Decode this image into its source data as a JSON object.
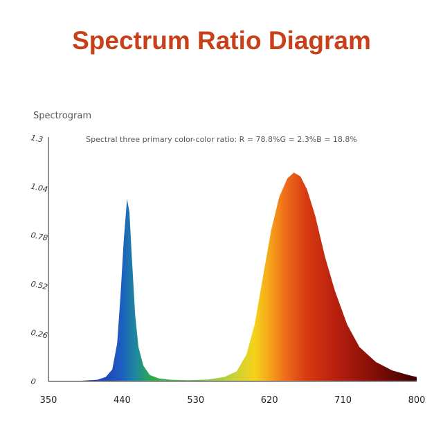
{
  "title": "Spectrum Ratio Diagram",
  "chart_data": {
    "type": "area",
    "panel_label": "Spectrogram",
    "annotation": "Spectral three primary color-color ratio: R = 78.8%G = 2.3%B = 18.8%",
    "xlim": [
      350,
      800
    ],
    "ylim": [
      0,
      1.3
    ],
    "x_ticks": [
      "350",
      "440",
      "530",
      "620",
      "710",
      "800"
    ],
    "y_ticks": [
      "0",
      "0.26",
      "0.52",
      "0.78",
      "1.04",
      "1.3"
    ],
    "grid": false,
    "series": [
      {
        "values": [
          [
            350,
            0.0
          ],
          [
            390,
            0.0
          ],
          [
            410,
            0.005
          ],
          [
            420,
            0.02
          ],
          [
            428,
            0.06
          ],
          [
            434,
            0.2
          ],
          [
            438,
            0.45
          ],
          [
            442,
            0.75
          ],
          [
            446,
            0.97
          ],
          [
            449,
            0.9
          ],
          [
            452,
            0.65
          ],
          [
            456,
            0.35
          ],
          [
            460,
            0.18
          ],
          [
            466,
            0.08
          ],
          [
            474,
            0.03
          ],
          [
            485,
            0.012
          ],
          [
            500,
            0.005
          ],
          [
            520,
            0.003
          ],
          [
            545,
            0.006
          ],
          [
            565,
            0.02
          ],
          [
            580,
            0.05
          ],
          [
            592,
            0.14
          ],
          [
            602,
            0.3
          ],
          [
            612,
            0.55
          ],
          [
            622,
            0.8
          ],
          [
            632,
            0.98
          ],
          [
            642,
            1.08
          ],
          [
            650,
            1.11
          ],
          [
            658,
            1.09
          ],
          [
            666,
            1.02
          ],
          [
            676,
            0.88
          ],
          [
            688,
            0.66
          ],
          [
            700,
            0.48
          ],
          [
            715,
            0.3
          ],
          [
            730,
            0.18
          ],
          [
            750,
            0.1
          ],
          [
            770,
            0.055
          ],
          [
            790,
            0.03
          ],
          [
            800,
            0.02
          ]
        ]
      }
    ]
  }
}
